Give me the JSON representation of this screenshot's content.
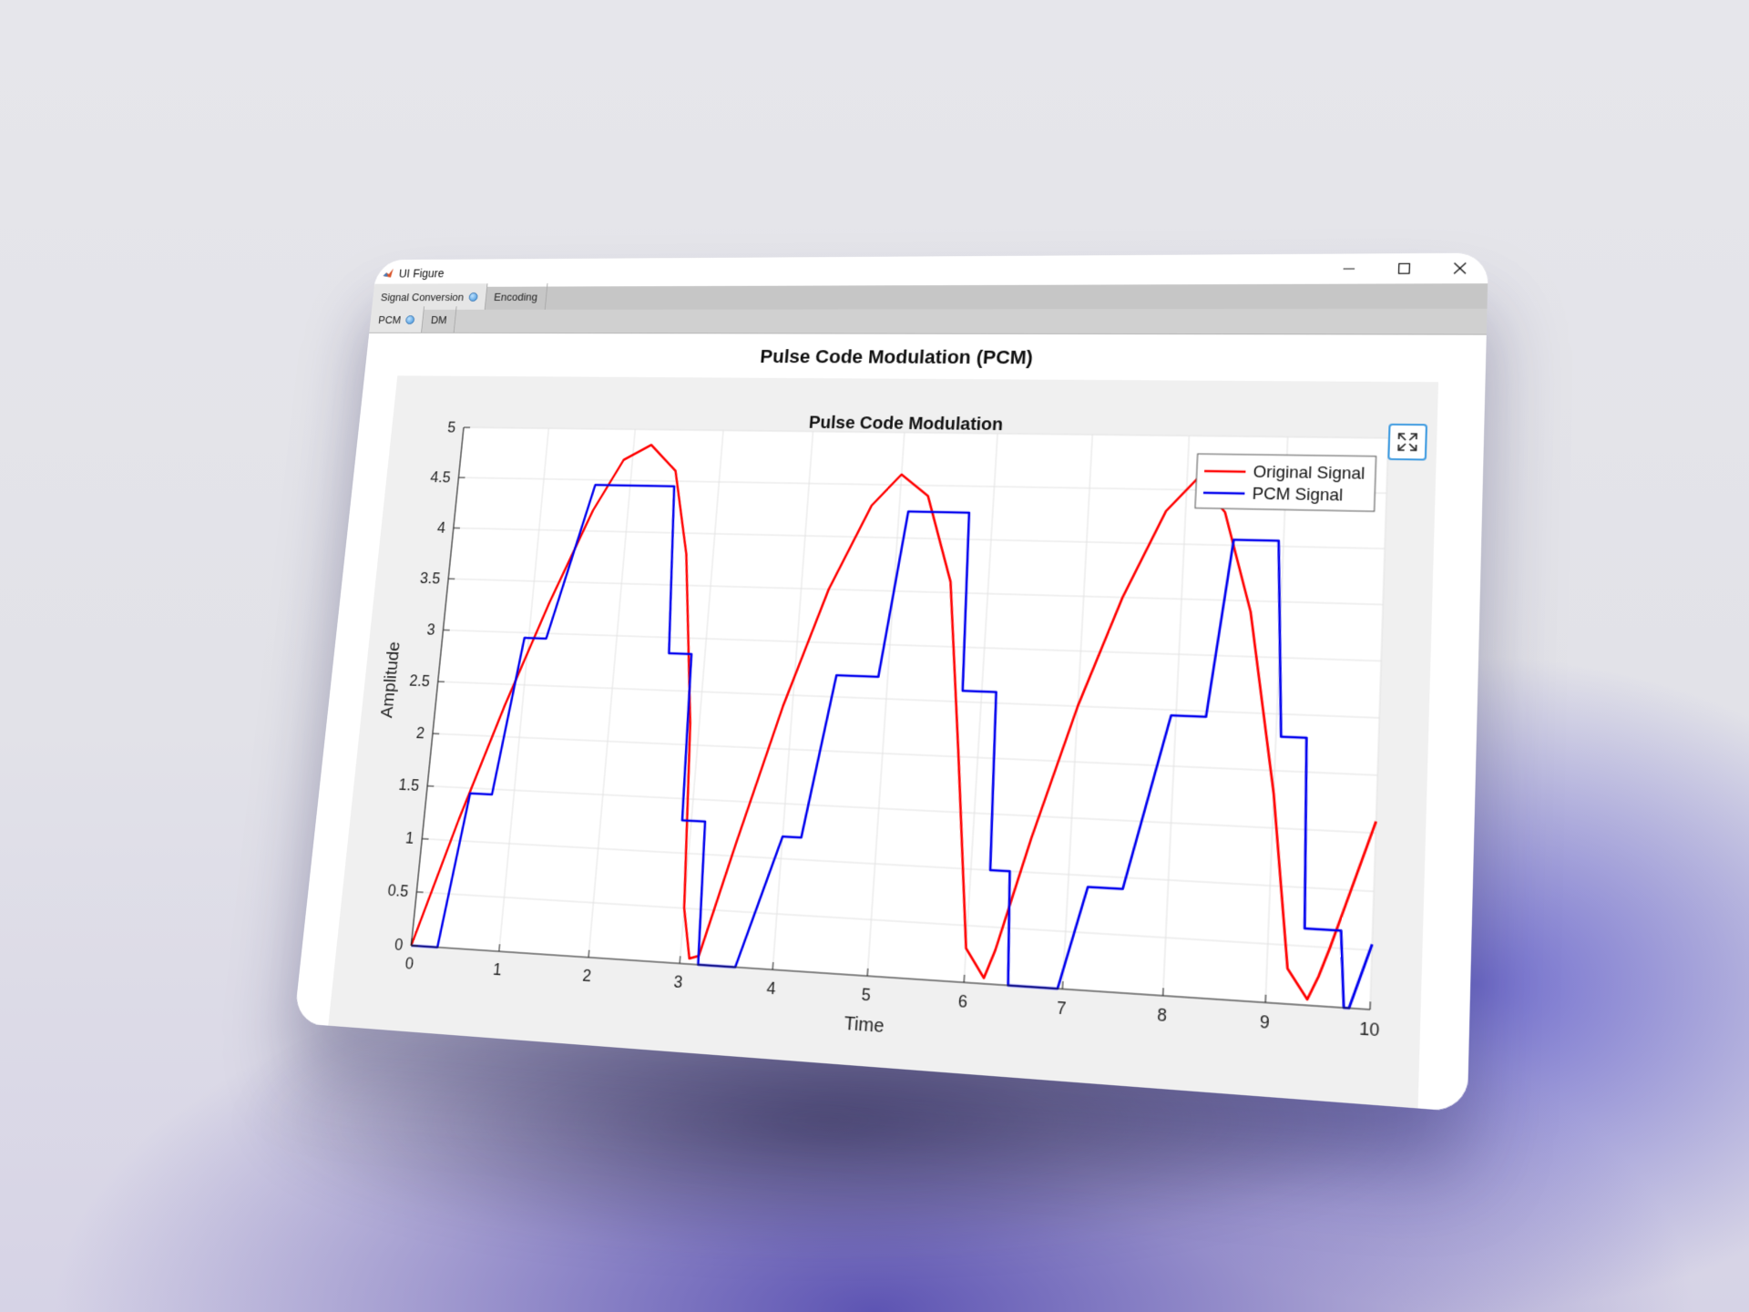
{
  "window": {
    "title": "UI Figure"
  },
  "tabs": {
    "level1": [
      {
        "label": "Signal Conversion",
        "active": true
      },
      {
        "label": "Encoding",
        "active": false
      }
    ],
    "level2": [
      {
        "label": "PCM",
        "active": true
      },
      {
        "label": "DM",
        "active": false
      }
    ]
  },
  "panel": {
    "title": "Pulse Code Modulation (PCM)"
  },
  "icons": {
    "minimize": "minimize-icon",
    "maximize": "maximize-icon",
    "close": "close-icon",
    "expand": "expand-icon"
  },
  "colors": {
    "original": "#ff0000",
    "pcm": "#0000ee",
    "tab_dot": "#3b8fd9",
    "expand_border": "#3f9be0"
  },
  "chart_data": {
    "type": "line",
    "title": "Pulse Code Modulation",
    "xlabel": "Time",
    "ylabel": "Amplitude",
    "xlim": [
      0,
      10
    ],
    "ylim": [
      0,
      5
    ],
    "xticks": [
      "0",
      "1",
      "2",
      "3",
      "4",
      "5",
      "6",
      "7",
      "8",
      "9",
      "10"
    ],
    "yticks": [
      "0",
      "0.5",
      "1",
      "1.5",
      "2",
      "2.5",
      "3",
      "3.5",
      "4",
      "4.5",
      "5"
    ],
    "grid": true,
    "legend": {
      "placement": "top-right",
      "entries": [
        "Original Signal",
        "PCM Signal"
      ]
    },
    "series": [
      {
        "name": "Original Signal",
        "color": "#ff0000",
        "x": [
          0,
          0.4,
          0.8,
          1.2,
          1.6,
          1.9,
          2.2,
          2.5,
          2.7,
          2.9,
          3.0,
          3.1,
          3.2,
          3.5,
          3.9,
          4.3,
          4.7,
          5.0,
          5.3,
          5.6,
          5.8,
          6.0,
          6.2,
          6.3,
          6.6,
          7.0,
          7.4,
          7.8,
          8.1,
          8.4,
          8.7,
          9.0,
          9.2,
          9.4,
          9.5,
          9.6,
          10.0
        ],
        "y": [
          0,
          1.2,
          2.3,
          3.3,
          4.2,
          4.7,
          4.85,
          4.6,
          3.8,
          2.2,
          0.5,
          0.05,
          0.08,
          1.1,
          2.4,
          3.5,
          4.3,
          4.6,
          4.4,
          3.6,
          2.0,
          0.3,
          0.05,
          0.3,
          1.3,
          2.5,
          3.5,
          4.3,
          4.6,
          4.3,
          3.4,
          1.8,
          0.3,
          0.05,
          0.25,
          0.5,
          1.6
        ]
      },
      {
        "name": "PCM Signal",
        "color": "#0000ee",
        "x": [
          0,
          0.3,
          0.5,
          0.75,
          0.95,
          1.2,
          1.6,
          1.85,
          2.5,
          2.6,
          2.85,
          2.9,
          3.15,
          3.2,
          3.6,
          4.0,
          4.2,
          4.45,
          4.9,
          5.1,
          5.75,
          5.8,
          6.15,
          6.2,
          6.4,
          6.45,
          6.95,
          7.2,
          7.55,
          7.95,
          8.3,
          8.5,
          8.95,
          9.05,
          9.3,
          9.35,
          9.7,
          9.75,
          9.8,
          10.0,
          10.0
        ],
        "y": [
          0,
          0,
          1.45,
          1.45,
          2.95,
          2.95,
          4.45,
          4.45,
          4.45,
          2.85,
          2.85,
          1.3,
          1.3,
          0,
          0,
          1.2,
          1.2,
          2.7,
          2.7,
          4.25,
          4.25,
          2.6,
          2.6,
          1.0,
          1.0,
          0,
          0,
          0.9,
          0.9,
          2.45,
          2.45,
          4.05,
          4.05,
          2.3,
          2.3,
          0.65,
          0.65,
          0,
          0,
          0.55,
          0.55
        ]
      }
    ]
  }
}
